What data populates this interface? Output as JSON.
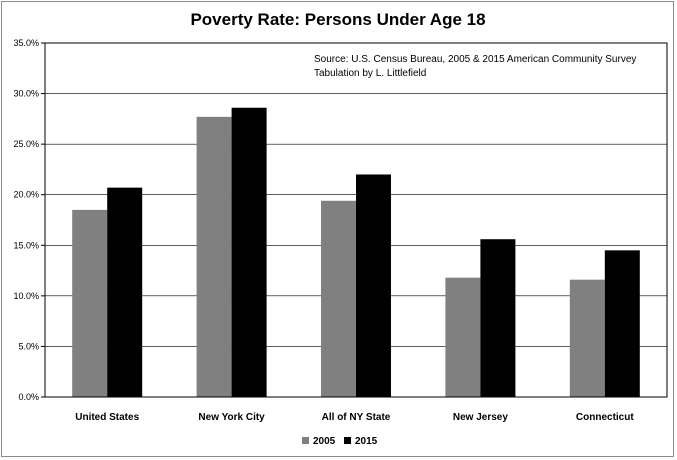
{
  "chart_data": {
    "type": "bar",
    "title": "Poverty Rate:  Persons Under Age 18",
    "categories": [
      "United States",
      "New York City",
      "All of NY State",
      "New Jersey",
      "Connecticut"
    ],
    "series": [
      {
        "name": "2005",
        "values": [
          18.5,
          27.7,
          19.4,
          11.8,
          11.6
        ],
        "color": "#808080"
      },
      {
        "name": "2015",
        "values": [
          20.7,
          28.6,
          22.0,
          15.6,
          14.5
        ],
        "color": "#000000"
      }
    ],
    "yticks": [
      "0.0%",
      "5.0%",
      "10.0%",
      "15.0%",
      "20.0%",
      "25.0%",
      "30.0%",
      "35.0%"
    ],
    "ylim": [
      0,
      35
    ],
    "grid": true,
    "legend": "bottom-center",
    "annotations": [
      "Source:  U.S. Census Bureau, 2005 & 2015 American Community Survey",
      "Tabulation by L. Littlefield"
    ]
  }
}
